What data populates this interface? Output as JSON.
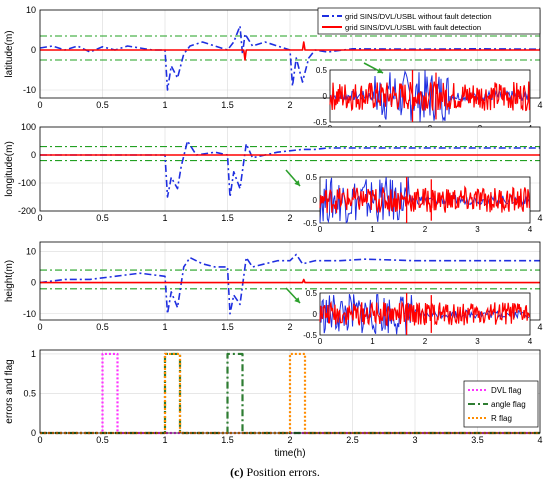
{
  "caption": {
    "label": "(c)",
    "text": "Position errors."
  },
  "colors": {
    "blue": "#1f2fe0",
    "red": "#ff0000",
    "green_threshold": "#22a022",
    "dvl_flag": "#ff33ff",
    "angle_flag": "#2e7d32",
    "r_flag": "#ff8c00",
    "arrow": "#2ca02c"
  },
  "legend_top": [
    {
      "label": "grid SINS/DVL/USBL without fault detection",
      "color": "#1f2fe0",
      "style": "dash-dot"
    },
    {
      "label": "grid SINS/DVL/USBL with fault detection",
      "color": "#ff0000",
      "style": "solid"
    }
  ],
  "chart_data": [
    {
      "type": "line",
      "name": "latitude",
      "ylabel": "latitude(m)",
      "xlim": [
        0,
        4
      ],
      "ylim": [
        -12,
        10
      ],
      "xticks": [
        "0",
        "0.5",
        "1",
        "1.5",
        "2",
        "2.5",
        "3",
        "3.5",
        "4"
      ],
      "yticks": [
        "10",
        "0",
        "-10"
      ],
      "ytick_values": [
        10,
        0,
        -10
      ],
      "thresholds": [
        3.5,
        -2.5
      ],
      "series": [
        {
          "name": "grid SINS/DVL/USBL without fault detection",
          "color": "#1f2fe0",
          "x": [
            0,
            0.1,
            0.2,
            0.3,
            0.4,
            0.5,
            0.6,
            0.7,
            0.8,
            0.9,
            1.0,
            1.02,
            1.05,
            1.1,
            1.15,
            1.2,
            1.3,
            1.4,
            1.5,
            1.55,
            1.6,
            1.62,
            1.64,
            1.7,
            1.8,
            1.9,
            2.0,
            2.02,
            2.05,
            2.1,
            2.15,
            2.2,
            2.3,
            2.5,
            3.0,
            3.5,
            4.0
          ],
          "y": [
            0.5,
            1,
            0,
            1,
            -0.5,
            0.8,
            0,
            1,
            0.5,
            0,
            0,
            -10,
            -4,
            -7,
            -1,
            1,
            2,
            1,
            0,
            2,
            6,
            -1,
            4,
            1,
            2,
            1,
            0,
            -9,
            -2,
            -8,
            -2,
            0,
            -0.5,
            0.3,
            0.2,
            0.3,
            0.2
          ]
        },
        {
          "name": "grid SINS/DVL/USBL with fault detection",
          "color": "#ff0000",
          "x": [
            0,
            1.0,
            1.63,
            1.64,
            1.65,
            2.1,
            2.11,
            2.12,
            4.0
          ],
          "y": [
            0,
            0,
            0,
            -2.5,
            0,
            0,
            2,
            0,
            0
          ]
        }
      ],
      "inset": {
        "xlim": [
          0,
          4
        ],
        "ylim": [
          -0.5,
          0.5
        ],
        "xticks": [
          "0",
          "1",
          "2",
          "3",
          "4"
        ],
        "yticks": [
          "0.5",
          "0",
          "-0.5"
        ]
      }
    },
    {
      "type": "line",
      "name": "longitude",
      "ylabel": "longitude(m)",
      "xlim": [
        0,
        4
      ],
      "ylim": [
        -200,
        100
      ],
      "xticks": [
        "0",
        "0.5",
        "1",
        "1.5",
        "2",
        "2.5",
        "3",
        "3.5",
        "4"
      ],
      "yticks": [
        "100",
        "0",
        "-100",
        "-200"
      ],
      "ytick_values": [
        100,
        0,
        -100,
        -200
      ],
      "thresholds": [
        30,
        -20
      ],
      "series": [
        {
          "name": "grid SINS/DVL/USBL without fault detection",
          "color": "#1f2fe0",
          "x": [
            0,
            0.5,
            1.0,
            1.02,
            1.05,
            1.1,
            1.13,
            1.18,
            1.25,
            1.4,
            1.5,
            1.52,
            1.55,
            1.6,
            1.65,
            1.7,
            1.8,
            1.9,
            2.0,
            2.1,
            2.2,
            2.3,
            2.5,
            3.0,
            3.5,
            4.0
          ],
          "y": [
            0,
            0,
            0,
            -150,
            -80,
            -120,
            -40,
            50,
            0,
            10,
            0,
            -150,
            -60,
            -120,
            40,
            -10,
            0,
            10,
            15,
            20,
            20,
            25,
            25,
            25,
            25,
            25
          ]
        },
        {
          "name": "grid SINS/DVL/USBL with fault detection",
          "color": "#ff0000",
          "x": [
            0,
            4.0
          ],
          "y": [
            0,
            0
          ]
        }
      ],
      "inset": {
        "xlim": [
          0,
          4
        ],
        "ylim": [
          -0.5,
          0.5
        ],
        "xticks": [
          "0",
          "1",
          "2",
          "3",
          "4"
        ],
        "yticks": [
          "0.5",
          "0",
          "-0.5"
        ]
      }
    },
    {
      "type": "line",
      "name": "height",
      "ylabel": "height(m)",
      "xlim": [
        0,
        4
      ],
      "ylim": [
        -12,
        13
      ],
      "xticks": [
        "0",
        "0.5",
        "1",
        "1.5",
        "2",
        "2.5",
        "3",
        "3.5",
        "4"
      ],
      "yticks": [
        "10",
        "0",
        "-10"
      ],
      "ytick_values": [
        10,
        0,
        -10
      ],
      "thresholds": [
        4,
        -2
      ],
      "series": [
        {
          "name": "grid SINS/DVL/USBL without fault detection",
          "color": "#1f2fe0",
          "x": [
            0,
            0.2,
            0.4,
            0.6,
            0.8,
            1.0,
            1.02,
            1.05,
            1.1,
            1.15,
            1.2,
            1.3,
            1.4,
            1.5,
            1.52,
            1.55,
            1.6,
            1.65,
            1.7,
            1.8,
            1.9,
            2.0,
            2.05,
            2.1,
            2.2,
            2.4,
            2.6,
            3.0,
            3.5,
            4.0
          ],
          "y": [
            0,
            1,
            1,
            2,
            3,
            2,
            -10,
            -3,
            -8,
            5,
            8,
            6,
            5,
            5,
            -10,
            -4,
            -7,
            8,
            5,
            6,
            7,
            7,
            9,
            6,
            7,
            7,
            7.5,
            7,
            7,
            7
          ]
        },
        {
          "name": "grid SINS/DVL/USBL with fault detection",
          "color": "#ff0000",
          "x": [
            0,
            2.1,
            2.11,
            2.12,
            4.0
          ],
          "y": [
            0,
            0,
            1,
            0,
            0
          ]
        }
      ],
      "inset": {
        "xlim": [
          0,
          4
        ],
        "ylim": [
          -0.5,
          0.5
        ],
        "xticks": [
          "0",
          "1",
          "2",
          "3",
          "4"
        ],
        "yticks": [
          "0.5",
          "0",
          "-0.5"
        ]
      }
    },
    {
      "type": "line",
      "name": "flags",
      "ylabel": "errors and flag",
      "xlabel": "time(h)",
      "xlim": [
        0,
        4
      ],
      "ylim": [
        0,
        1.05
      ],
      "xticks": [
        "0",
        "0.5",
        "1",
        "1.5",
        "2",
        "2.5",
        "3",
        "3.5",
        "4"
      ],
      "yticks": [
        "1",
        "0.5",
        "0"
      ],
      "ytick_values": [
        1,
        0.5,
        0
      ],
      "series": [
        {
          "name": "DVL flag",
          "color": "#ff33ff",
          "style": "dotted",
          "x": [
            0,
            0.5,
            0.5,
            0.62,
            0.62,
            4.0
          ],
          "y": [
            0,
            0,
            1,
            1,
            0,
            0
          ]
        },
        {
          "name": "angle flag",
          "color": "#2e7d32",
          "style": "dash-dot",
          "x": [
            0,
            1.0,
            1.0,
            1.12,
            1.12,
            1.5,
            1.5,
            1.62,
            1.62,
            4.0
          ],
          "y": [
            0,
            0,
            1,
            1,
            0,
            0,
            1,
            1,
            0,
            0
          ]
        },
        {
          "name": "R flag",
          "color": "#ff8c00",
          "style": "dotted",
          "x": [
            0,
            1.0,
            1.0,
            1.12,
            1.12,
            2.0,
            2.0,
            2.12,
            2.12,
            4.0
          ],
          "y": [
            0,
            0,
            1,
            1,
            0,
            0,
            1,
            1,
            0,
            0
          ]
        }
      ]
    }
  ]
}
